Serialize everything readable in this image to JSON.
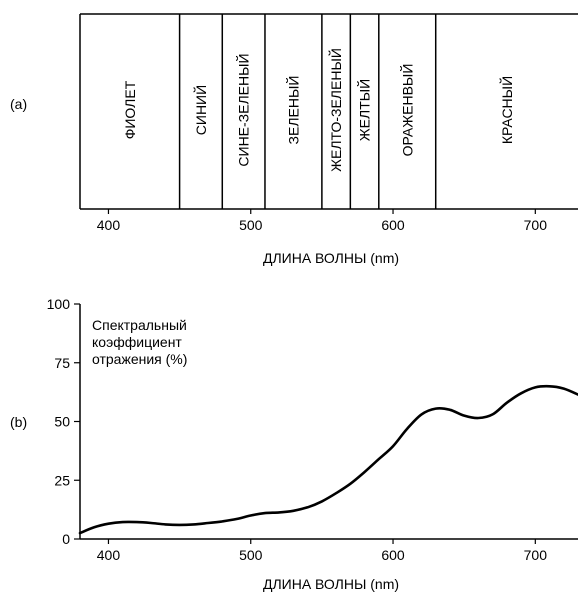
{
  "chart_data": [
    {
      "panel_label": "(a)",
      "type": "table",
      "xlabel": "ДЛИНА ВОЛНЫ (nm)",
      "xlim": [
        380,
        730
      ],
      "xticks": [
        400,
        500,
        600,
        700
      ],
      "bands": [
        {
          "label": "ФИОЛЕТ",
          "from": 380,
          "to": 450
        },
        {
          "label": "СИНИЙ",
          "from": 450,
          "to": 480
        },
        {
          "label": "СИНЕ-ЗЕЛЕНЫЙ",
          "from": 480,
          "to": 510
        },
        {
          "label": "ЗЕЛЕНЫЙ",
          "from": 510,
          "to": 550
        },
        {
          "label": "ЖЕЛТО-ЗЕЛЕНЫЙ",
          "from": 550,
          "to": 570
        },
        {
          "label": "ЖЕЛТЫЙ",
          "from": 570,
          "to": 590
        },
        {
          "label": "ОРАЖЕНВЫЙ",
          "from": 590,
          "to": 630
        },
        {
          "label": "КРАСНЫЙ",
          "from": 630,
          "to": 730
        }
      ]
    },
    {
      "panel_label": "(b)",
      "type": "line",
      "annotation": [
        "Спектральный",
        "коэффициент",
        "отражения (%)"
      ],
      "xlabel": "ДЛИНА ВОЛНЫ (nm)",
      "xlim": [
        380,
        730
      ],
      "ylim": [
        0,
        100
      ],
      "xticks": [
        400,
        500,
        600,
        700
      ],
      "yticks": [
        0,
        25,
        50,
        75,
        100
      ],
      "series": [
        {
          "x": [
            380,
            390,
            400,
            410,
            420,
            430,
            440,
            450,
            460,
            470,
            480,
            490,
            500,
            510,
            520,
            530,
            540,
            550,
            560,
            570,
            580,
            590,
            600,
            610,
            620,
            630,
            640,
            650,
            660,
            670,
            680,
            690,
            700,
            710,
            720,
            730
          ],
          "y": [
            2.5,
            5,
            6.5,
            7.2,
            7.2,
            6.8,
            6.2,
            6,
            6.2,
            6.8,
            7.5,
            8.5,
            10,
            11,
            11.3,
            12,
            13.5,
            16,
            19.5,
            23.5,
            28.5,
            34,
            39.5,
            47,
            53,
            55.5,
            55,
            52.5,
            51.5,
            53,
            58,
            62,
            64.5,
            65,
            64,
            61.5
          ]
        }
      ]
    }
  ]
}
